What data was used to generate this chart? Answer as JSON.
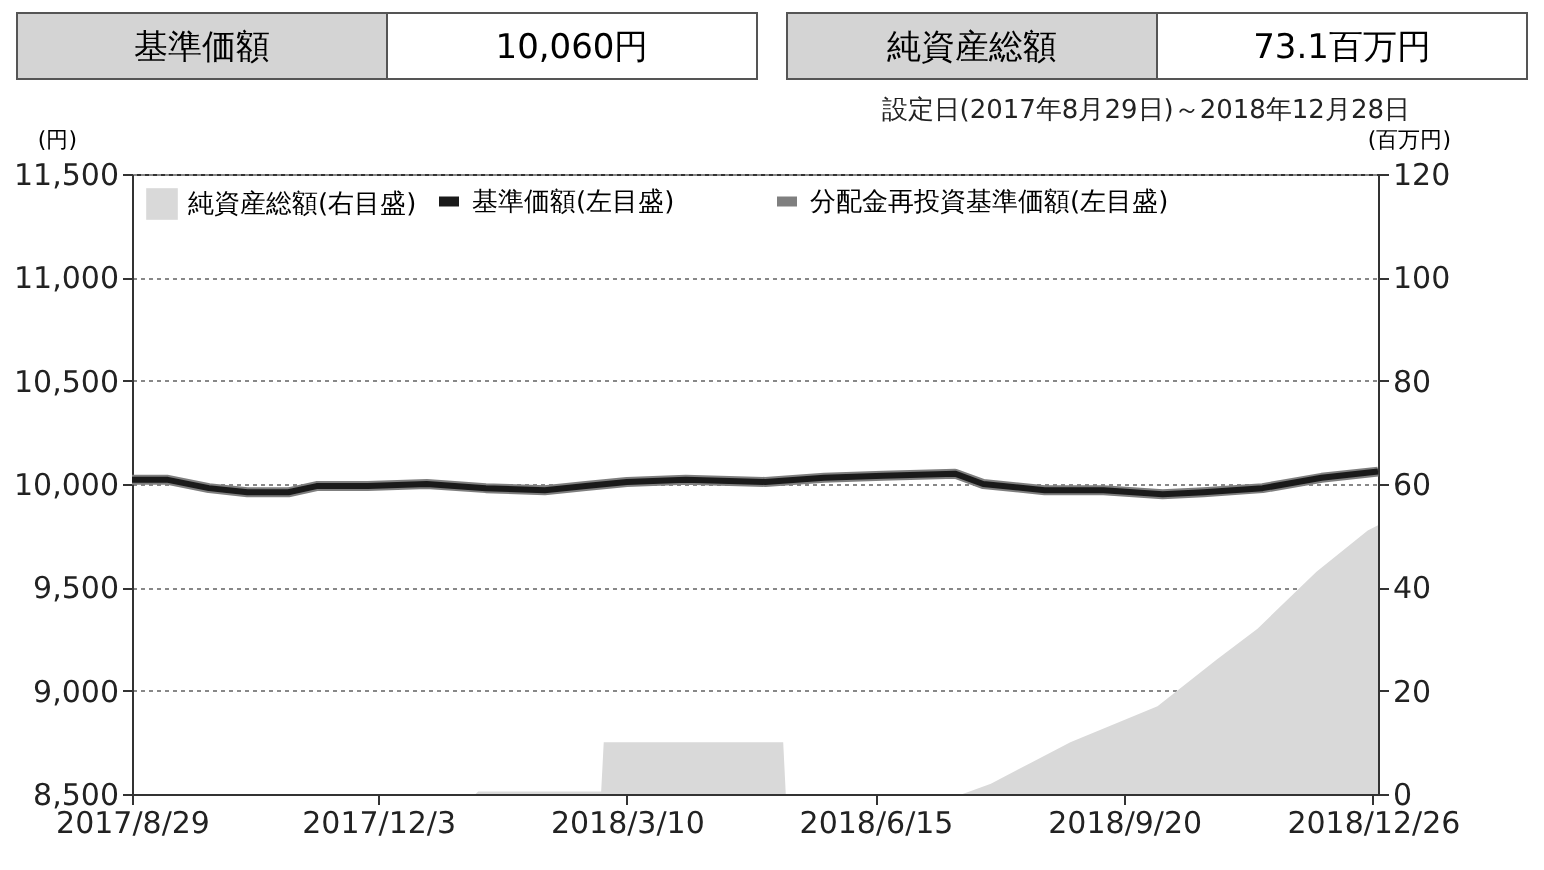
{
  "chart_data": {
    "type": "line",
    "subtitle": "設定日(2017年8月29日)～2018年12月28日",
    "ylabel": "(円)",
    "y2label": "(百万円)",
    "annotations": [
      "基準価額",
      "10,060円",
      "純資産総額",
      "73.1百万円"
    ],
    "xlim": [
      "2017-08-29",
      "2018-12-28"
    ],
    "xticks": [
      {
        "value": "2017-08-29",
        "label": "2017/8/29"
      },
      {
        "value": "2017-12-03",
        "label": "2017/12/3"
      },
      {
        "value": "2018-03-10",
        "label": "2018/3/10"
      },
      {
        "value": "2018-06-15",
        "label": "2018/6/15"
      },
      {
        "value": "2018-09-20",
        "label": "2018/9/20"
      },
      {
        "value": "2018-12-26",
        "label": "2018/12/26"
      }
    ],
    "ylim": [
      8500,
      11500
    ],
    "yticks": [
      {
        "value": 8500,
        "label": "8,500"
      },
      {
        "value": 9000,
        "label": "9,000"
      },
      {
        "value": 9500,
        "label": "9,500"
      },
      {
        "value": 10000,
        "label": "10,000"
      },
      {
        "value": 10500,
        "label": "10,500"
      },
      {
        "value": 11000,
        "label": "11,000"
      },
      {
        "value": 11500,
        "label": "11,500"
      }
    ],
    "y2lim": [
      0,
      120
    ],
    "y2ticks": [
      0,
      20,
      40,
      60,
      80,
      100,
      120
    ],
    "grid": "y",
    "legend": "top left",
    "series": [
      {
        "name": "純資産総額(右目盛)",
        "type": "area",
        "axis": "y2",
        "color": "#d9d9d9",
        "x": [
          "2017-08-29",
          "2018-01-10",
          "2018-01-11",
          "2018-02-28",
          "2018-03-01",
          "2018-05-10",
          "2018-05-11",
          "2018-07-19",
          "2018-07-30",
          "2018-08-30",
          "2018-10-03",
          "2018-10-26",
          "2018-11-11",
          "2018-12-04",
          "2018-12-24",
          "2018-12-28"
        ],
        "values": [
          0,
          0,
          0.5,
          0.5,
          10,
          10,
          0,
          0,
          2,
          10,
          17,
          26,
          32,
          43,
          51,
          52
        ]
      },
      {
        "name": "基準価額(左目盛)",
        "color": "#1a1a1a",
        "x": [
          "2017-08-29",
          "2017-09-12",
          "2017-09-28",
          "2017-10-13",
          "2017-10-29",
          "2017-11-09",
          "2017-11-29",
          "2017-12-22",
          "2018-01-14",
          "2018-02-06",
          "2018-02-22",
          "2018-03-10",
          "2018-04-02",
          "2018-05-03",
          "2018-05-26",
          "2018-06-18",
          "2018-07-16",
          "2018-07-27",
          "2018-08-20",
          "2018-09-12",
          "2018-10-05",
          "2018-10-21",
          "2018-11-13",
          "2018-12-06",
          "2018-12-28"
        ],
        "values": [
          10020,
          10020,
          9980,
          9960,
          9960,
          9990,
          9990,
          10000,
          9980,
          9970,
          9990,
          10010,
          10020,
          10010,
          10030,
          10040,
          10050,
          10000,
          9970,
          9970,
          9950,
          9960,
          9980,
          10030,
          10060
        ]
      },
      {
        "name": "分配金再投資基準価額(左目盛)",
        "color": "#7f7f7f",
        "x": [
          "2017-08-29",
          "2017-09-12",
          "2017-09-28",
          "2017-10-13",
          "2017-10-29",
          "2017-11-09",
          "2017-11-29",
          "2017-12-22",
          "2018-01-14",
          "2018-02-06",
          "2018-02-22",
          "2018-03-10",
          "2018-04-02",
          "2018-05-03",
          "2018-05-26",
          "2018-06-18",
          "2018-07-16",
          "2018-07-27",
          "2018-08-20",
          "2018-09-12",
          "2018-10-05",
          "2018-10-21",
          "2018-11-13",
          "2018-12-06",
          "2018-12-28"
        ],
        "values": [
          10020,
          10020,
          9980,
          9960,
          9960,
          9990,
          9990,
          10000,
          9980,
          9970,
          9990,
          10010,
          10020,
          10010,
          10030,
          10040,
          10050,
          10000,
          9970,
          9970,
          9950,
          9960,
          9980,
          10030,
          10060
        ]
      }
    ]
  }
}
